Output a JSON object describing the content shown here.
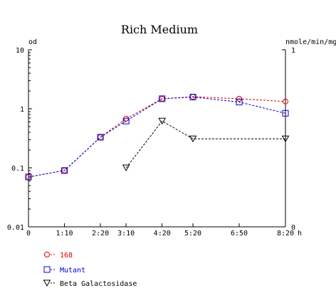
{
  "chart_data": {
    "type": "line",
    "title": "Rich Medium",
    "y_left_label": "od",
    "y_right_label": "nmole/min/mg",
    "x_unit": "h",
    "y_left_scale": "log",
    "y_left_range": [
      0.01,
      10
    ],
    "y_left_ticks": [
      "10",
      "1",
      "0.1",
      "0.01"
    ],
    "y_right_range": [
      0,
      1
    ],
    "y_right_ticks": [
      "1",
      "0"
    ],
    "x_hours": [
      0,
      1.1667,
      2.3333,
      3.1667,
      4.3333,
      5.3333,
      6.8333,
      8.3333
    ],
    "x_tick_labels": [
      "0",
      "1:10",
      "2:20",
      "3:10",
      "4:20",
      "5:20",
      "6:50",
      "8:20"
    ],
    "x_range": [
      0,
      8.3333
    ],
    "grid": false,
    "legend_position": "bottom-left",
    "series": [
      {
        "name": "168",
        "color": "#dd0000",
        "marker": "circle",
        "axis": "left",
        "x": [
          0,
          1.1667,
          2.3333,
          3.1667,
          4.3333,
          5.3333,
          6.8333,
          8.3333
        ],
        "y": [
          0.07,
          0.09,
          0.33,
          0.68,
          1.48,
          1.6,
          1.48,
          1.33
        ]
      },
      {
        "name": "Mutant",
        "color": "#0000cc",
        "marker": "square",
        "axis": "left",
        "x": [
          0,
          1.1667,
          2.3333,
          3.1667,
          4.3333,
          5.3333,
          6.8333,
          8.3333
        ],
        "y": [
          0.07,
          0.09,
          0.33,
          0.62,
          1.48,
          1.58,
          1.3,
          0.84
        ]
      },
      {
        "name": "Beta Galactosidase",
        "color": "#000000",
        "marker": "triangle-down",
        "axis": "left",
        "x": [
          3.1667,
          4.3333,
          5.3333,
          8.3333
        ],
        "y": [
          0.1,
          0.62,
          0.31,
          0.31
        ]
      }
    ]
  }
}
